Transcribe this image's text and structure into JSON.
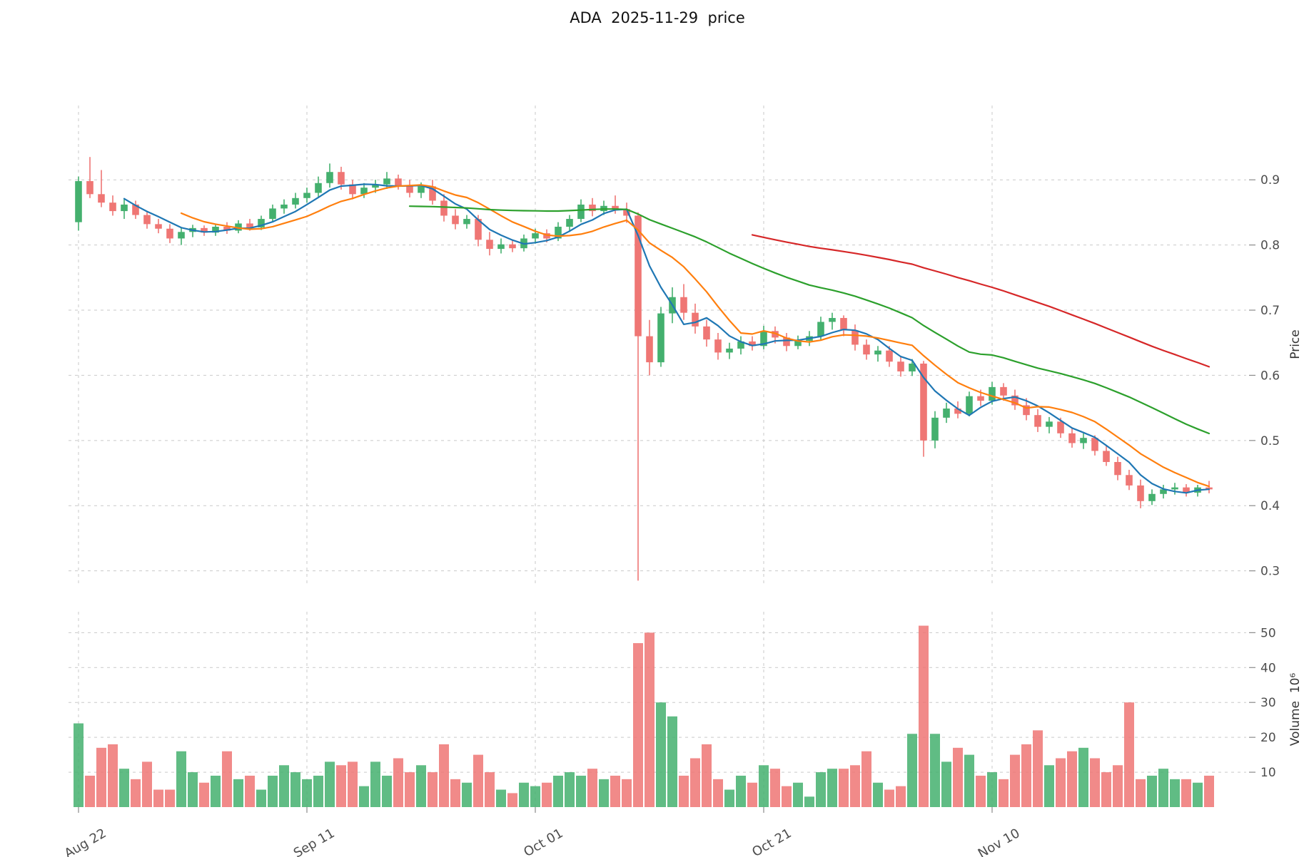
{
  "title": "ADA  2025-11-29  price",
  "axes": {
    "price_label": "Price",
    "volume_label": "Volume  10⁶"
  },
  "chart_data": {
    "type": "candlestick",
    "title": "ADA  2025-11-29  price",
    "x_tick_labels": [
      "Aug 22",
      "Sep 11",
      "Oct 01",
      "Oct 21",
      "Nov 10"
    ],
    "x_tick_indices": [
      0,
      20,
      40,
      60,
      80
    ],
    "price_ticks": [
      0.3,
      0.4,
      0.5,
      0.6,
      0.7,
      0.8,
      0.9
    ],
    "volume_ticks": [
      10,
      20,
      30,
      40,
      50
    ],
    "price_range": [
      0.281,
      1.014
    ],
    "volume_range": [
      0,
      56
    ],
    "grid": true,
    "legend": "none",
    "colors": {
      "up": "#44b06e",
      "down": "#ef7674",
      "grid": "#c9c9c9",
      "text": "#4d4d4d"
    },
    "moving_averages": [
      {
        "period": 5,
        "color": "#1f77b4"
      },
      {
        "period": 10,
        "color": "#ff7f0e"
      },
      {
        "period": 30,
        "color": "#2ca02c"
      },
      {
        "period": 60,
        "color": "#d62728"
      }
    ],
    "dates": [
      "Aug 22",
      "Aug 23",
      "Aug 24",
      "Aug 25",
      "Aug 26",
      "Aug 27",
      "Aug 28",
      "Aug 29",
      "Aug 30",
      "Aug 31",
      "Sep 01",
      "Sep 02",
      "Sep 03",
      "Sep 04",
      "Sep 05",
      "Sep 06",
      "Sep 07",
      "Sep 08",
      "Sep 09",
      "Sep 10",
      "Sep 11",
      "Sep 12",
      "Sep 13",
      "Sep 14",
      "Sep 15",
      "Sep 16",
      "Sep 17",
      "Sep 18",
      "Sep 19",
      "Sep 20",
      "Sep 21",
      "Sep 22",
      "Sep 23",
      "Sep 24",
      "Sep 25",
      "Sep 26",
      "Sep 27",
      "Sep 28",
      "Sep 29",
      "Sep 30",
      "Oct 01",
      "Oct 02",
      "Oct 03",
      "Oct 04",
      "Oct 05",
      "Oct 06",
      "Oct 07",
      "Oct 08",
      "Oct 09",
      "Oct 10",
      "Oct 11",
      "Oct 12",
      "Oct 13",
      "Oct 14",
      "Oct 15",
      "Oct 16",
      "Oct 17",
      "Oct 18",
      "Oct 19",
      "Oct 20",
      "Oct 21",
      "Oct 22",
      "Oct 23",
      "Oct 24",
      "Oct 25",
      "Oct 26",
      "Oct 27",
      "Oct 28",
      "Oct 29",
      "Oct 30",
      "Oct 31",
      "Nov 01",
      "Nov 02",
      "Nov 03",
      "Nov 04",
      "Nov 05",
      "Nov 06",
      "Nov 07",
      "Nov 08",
      "Nov 09",
      "Nov 10",
      "Nov 11",
      "Nov 12",
      "Nov 13",
      "Nov 14",
      "Nov 15",
      "Nov 16",
      "Nov 17",
      "Nov 18",
      "Nov 19",
      "Nov 20",
      "Nov 21",
      "Nov 22",
      "Nov 23",
      "Nov 24",
      "Nov 25",
      "Nov 26",
      "Nov 27",
      "Nov 28",
      "Nov 29"
    ],
    "ohlc": [
      [
        0.835,
        0.905,
        0.822,
        0.898
      ],
      [
        0.898,
        0.935,
        0.872,
        0.878
      ],
      [
        0.878,
        0.915,
        0.858,
        0.865
      ],
      [
        0.865,
        0.876,
        0.845,
        0.852
      ],
      [
        0.852,
        0.87,
        0.84,
        0.862
      ],
      [
        0.862,
        0.868,
        0.84,
        0.846
      ],
      [
        0.846,
        0.852,
        0.825,
        0.832
      ],
      [
        0.832,
        0.84,
        0.818,
        0.825
      ],
      [
        0.825,
        0.832,
        0.803,
        0.81
      ],
      [
        0.81,
        0.826,
        0.8,
        0.82
      ],
      [
        0.82,
        0.831,
        0.812,
        0.826
      ],
      [
        0.826,
        0.83,
        0.814,
        0.819
      ],
      [
        0.819,
        0.832,
        0.814,
        0.828
      ],
      [
        0.828,
        0.835,
        0.817,
        0.822
      ],
      [
        0.822,
        0.838,
        0.818,
        0.833
      ],
      [
        0.833,
        0.84,
        0.822,
        0.827
      ],
      [
        0.827,
        0.845,
        0.823,
        0.84
      ],
      [
        0.84,
        0.862,
        0.836,
        0.856
      ],
      [
        0.856,
        0.87,
        0.848,
        0.862
      ],
      [
        0.862,
        0.88,
        0.856,
        0.872
      ],
      [
        0.872,
        0.888,
        0.865,
        0.88
      ],
      [
        0.88,
        0.905,
        0.874,
        0.895
      ],
      [
        0.895,
        0.925,
        0.888,
        0.912
      ],
      [
        0.912,
        0.92,
        0.885,
        0.893
      ],
      [
        0.893,
        0.9,
        0.87,
        0.878
      ],
      [
        0.878,
        0.895,
        0.872,
        0.888
      ],
      [
        0.888,
        0.9,
        0.88,
        0.893
      ],
      [
        0.893,
        0.912,
        0.886,
        0.902
      ],
      [
        0.902,
        0.908,
        0.885,
        0.891
      ],
      [
        0.891,
        0.9,
        0.873,
        0.88
      ],
      [
        0.88,
        0.896,
        0.872,
        0.89
      ],
      [
        0.89,
        0.9,
        0.862,
        0.868
      ],
      [
        0.868,
        0.878,
        0.836,
        0.845
      ],
      [
        0.845,
        0.855,
        0.824,
        0.832
      ],
      [
        0.832,
        0.846,
        0.825,
        0.84
      ],
      [
        0.84,
        0.846,
        0.798,
        0.808
      ],
      [
        0.808,
        0.82,
        0.784,
        0.794
      ],
      [
        0.794,
        0.81,
        0.787,
        0.801
      ],
      [
        0.801,
        0.808,
        0.789,
        0.795
      ],
      [
        0.795,
        0.816,
        0.79,
        0.81
      ],
      [
        0.81,
        0.825,
        0.802,
        0.818
      ],
      [
        0.818,
        0.824,
        0.804,
        0.81
      ],
      [
        0.81,
        0.835,
        0.806,
        0.828
      ],
      [
        0.828,
        0.846,
        0.82,
        0.84
      ],
      [
        0.84,
        0.87,
        0.835,
        0.862
      ],
      [
        0.862,
        0.872,
        0.844,
        0.852
      ],
      [
        0.852,
        0.868,
        0.846,
        0.86
      ],
      [
        0.86,
        0.876,
        0.848,
        0.855
      ],
      [
        0.855,
        0.865,
        0.834,
        0.845
      ],
      [
        0.845,
        0.85,
        0.285,
        0.66
      ],
      [
        0.66,
        0.685,
        0.6,
        0.62
      ],
      [
        0.62,
        0.705,
        0.613,
        0.695
      ],
      [
        0.695,
        0.735,
        0.68,
        0.72
      ],
      [
        0.72,
        0.74,
        0.685,
        0.696
      ],
      [
        0.696,
        0.71,
        0.664,
        0.675
      ],
      [
        0.675,
        0.685,
        0.644,
        0.655
      ],
      [
        0.655,
        0.665,
        0.624,
        0.635
      ],
      [
        0.635,
        0.65,
        0.625,
        0.641
      ],
      [
        0.641,
        0.66,
        0.632,
        0.652
      ],
      [
        0.652,
        0.66,
        0.638,
        0.645
      ],
      [
        0.645,
        0.676,
        0.64,
        0.668
      ],
      [
        0.668,
        0.675,
        0.649,
        0.658
      ],
      [
        0.658,
        0.665,
        0.637,
        0.645
      ],
      [
        0.645,
        0.661,
        0.64,
        0.653
      ],
      [
        0.653,
        0.668,
        0.645,
        0.66
      ],
      [
        0.66,
        0.69,
        0.654,
        0.682
      ],
      [
        0.682,
        0.696,
        0.67,
        0.688
      ],
      [
        0.688,
        0.692,
        0.66,
        0.669
      ],
      [
        0.669,
        0.678,
        0.638,
        0.647
      ],
      [
        0.647,
        0.655,
        0.624,
        0.632
      ],
      [
        0.632,
        0.645,
        0.621,
        0.638
      ],
      [
        0.638,
        0.645,
        0.613,
        0.621
      ],
      [
        0.621,
        0.63,
        0.598,
        0.606
      ],
      [
        0.606,
        0.625,
        0.599,
        0.618
      ],
      [
        0.618,
        0.622,
        0.475,
        0.5
      ],
      [
        0.5,
        0.545,
        0.488,
        0.535
      ],
      [
        0.535,
        0.558,
        0.527,
        0.549
      ],
      [
        0.549,
        0.56,
        0.534,
        0.541
      ],
      [
        0.541,
        0.575,
        0.537,
        0.568
      ],
      [
        0.568,
        0.578,
        0.553,
        0.561
      ],
      [
        0.561,
        0.59,
        0.555,
        0.582
      ],
      [
        0.582,
        0.588,
        0.561,
        0.569
      ],
      [
        0.569,
        0.578,
        0.547,
        0.554
      ],
      [
        0.554,
        0.565,
        0.531,
        0.539
      ],
      [
        0.539,
        0.548,
        0.513,
        0.521
      ],
      [
        0.521,
        0.536,
        0.511,
        0.529
      ],
      [
        0.529,
        0.535,
        0.504,
        0.511
      ],
      [
        0.511,
        0.52,
        0.489,
        0.496
      ],
      [
        0.496,
        0.511,
        0.487,
        0.504
      ],
      [
        0.504,
        0.508,
        0.477,
        0.484
      ],
      [
        0.484,
        0.492,
        0.461,
        0.467
      ],
      [
        0.467,
        0.475,
        0.439,
        0.447
      ],
      [
        0.447,
        0.455,
        0.424,
        0.431
      ],
      [
        0.431,
        0.44,
        0.396,
        0.407
      ],
      [
        0.407,
        0.425,
        0.401,
        0.418
      ],
      [
        0.418,
        0.432,
        0.411,
        0.425
      ],
      [
        0.425,
        0.435,
        0.417,
        0.428
      ],
      [
        0.428,
        0.433,
        0.414,
        0.42
      ],
      [
        0.42,
        0.432,
        0.414,
        0.428
      ],
      [
        0.428,
        0.438,
        0.419,
        0.425
      ]
    ],
    "volume": [
      24,
      9,
      17,
      18,
      11,
      8,
      13,
      5,
      5,
      16,
      10,
      7,
      9,
      16,
      8,
      9,
      5,
      9,
      12,
      10,
      8,
      9,
      13,
      12,
      13,
      6,
      13,
      9,
      14,
      10,
      12,
      10,
      18,
      8,
      7,
      15,
      10,
      5,
      4,
      7,
      6,
      7,
      9,
      10,
      9,
      11,
      8,
      9,
      8,
      47,
      50,
      30,
      26,
      9,
      14,
      18,
      8,
      5,
      9,
      7,
      12,
      11,
      6,
      7,
      3,
      10,
      11,
      11,
      12,
      16,
      7,
      5,
      6,
      21,
      52,
      21,
      13,
      17,
      15,
      9,
      10,
      8,
      15,
      18,
      22,
      12,
      14,
      16,
      17,
      14,
      10,
      12,
      30,
      8,
      9,
      11,
      8,
      8,
      7,
      9
    ]
  }
}
